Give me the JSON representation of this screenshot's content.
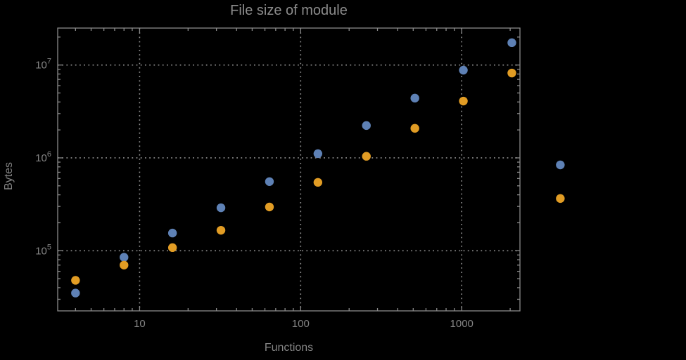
{
  "figure": {
    "title": "File size of module",
    "x_axis_label": "Functions",
    "y_axis_label": "Bytes"
  },
  "style": {
    "background_color": "#000000",
    "frame_color": "#8a8a8a",
    "grid_color": "#8f8f8f",
    "tick_label_color": "#848484",
    "title_color": "#8c8c8c",
    "series_colors": [
      "#5E81B5",
      "#E19C24"
    ]
  },
  "chart_data": {
    "type": "scatter",
    "title": "File size of module",
    "xlabel": "Functions",
    "ylabel": "Bytes",
    "x_scale": "log",
    "y_scale": "log",
    "xlim": [
      3.1,
      2300
    ],
    "ylim": [
      22500,
      25000000
    ],
    "grid": "major-dotted",
    "legend_position": "none",
    "x": [
      4,
      8,
      16,
      32,
      64,
      128,
      256,
      512,
      1024,
      2048,
      4096
    ],
    "series": [
      {
        "name": "series-1-blue",
        "color": "#5E81B5",
        "values": [
          35000,
          85000,
          155000,
          290000,
          555000,
          1110000,
          2230000,
          4400000,
          8800000,
          17400000,
          840000
        ]
      },
      {
        "name": "series-2-orange",
        "color": "#E19C24",
        "values": [
          48000,
          70000,
          108000,
          166000,
          296000,
          545000,
          1040000,
          2080000,
          4090000,
          8200000,
          365000
        ]
      }
    ],
    "x_ticks": [
      {
        "value": 10,
        "label": "10"
      },
      {
        "value": 100,
        "label": "100"
      },
      {
        "value": 1000,
        "label": "1000"
      }
    ],
    "y_ticks": [
      {
        "value": 100000,
        "base": "10",
        "exponent": "5"
      },
      {
        "value": 1000000,
        "base": "10",
        "exponent": "6"
      },
      {
        "value": 10000000,
        "base": "10",
        "exponent": "7"
      }
    ],
    "x_minor_ticks": [
      4,
      5,
      6,
      7,
      8,
      9,
      20,
      30,
      40,
      50,
      60,
      70,
      80,
      90,
      200,
      300,
      400,
      500,
      600,
      700,
      800,
      900,
      2000
    ],
    "y_minor_ticks": [
      30000,
      40000,
      50000,
      60000,
      70000,
      80000,
      90000,
      200000,
      300000,
      400000,
      500000,
      600000,
      700000,
      800000,
      900000,
      2000000,
      3000000,
      4000000,
      5000000,
      6000000,
      7000000,
      8000000,
      9000000,
      20000000
    ]
  }
}
